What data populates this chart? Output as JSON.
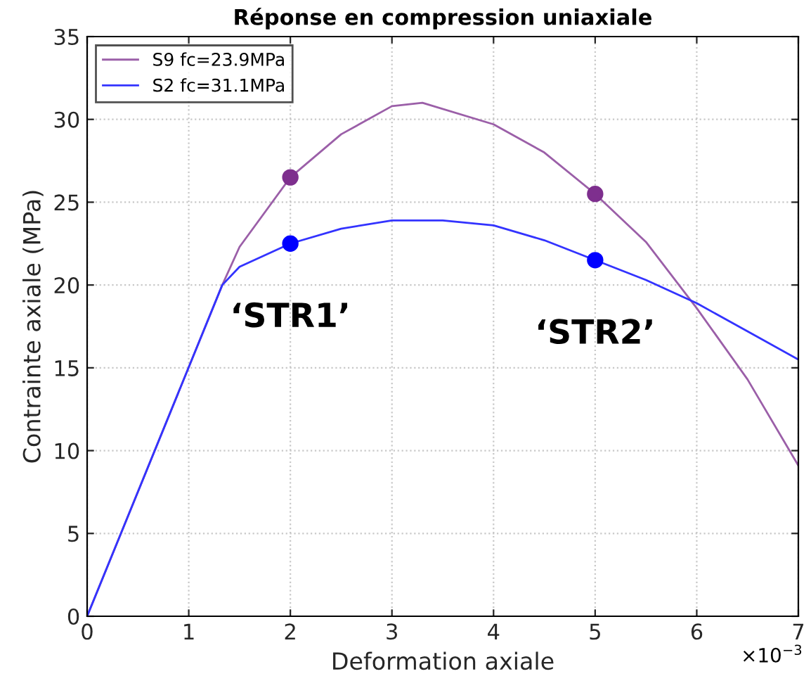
{
  "chart_data": {
    "type": "line",
    "title": "Réponse en compression uniaxiale",
    "xlabel": "Deformation axiale",
    "ylabel": "Contrainte axiale (MPa)",
    "series": [
      {
        "name": "S9 fc=23.9MPa",
        "color": "#9b5fa8",
        "x": [
          0,
          1.33,
          1.5,
          2,
          2.5,
          3,
          3.3,
          4,
          4.5,
          5,
          5.5,
          6,
          6.5,
          7
        ],
        "values": [
          0,
          20,
          22.3,
          26.5,
          29.1,
          30.8,
          31.0,
          29.7,
          28.0,
          25.5,
          22.6,
          18.6,
          14.3,
          9.1
        ]
      },
      {
        "name": "S2 fc=31.1MPa",
        "color": "#3333ff",
        "x": [
          0,
          1.33,
          1.5,
          2,
          2.5,
          3,
          3.5,
          4,
          4.5,
          5,
          5.5,
          6,
          6.5,
          7
        ],
        "values": [
          0,
          20,
          21.1,
          22.5,
          23.4,
          23.9,
          23.9,
          23.6,
          22.7,
          21.5,
          20.3,
          18.9,
          17.2,
          15.5
        ]
      },
      {
        "type": "scatter",
        "color": "#7e2f8e",
        "x": [
          2,
          5
        ],
        "values": [
          26.5,
          25.5
        ],
        "marker": "circle"
      },
      {
        "type": "scatter",
        "color": "#0000ff",
        "x": [
          2,
          5
        ],
        "values": [
          22.5,
          21.5
        ],
        "marker": "circle"
      }
    ],
    "xlim": [
      0,
      7
    ],
    "ylim": [
      0,
      35
    ],
    "xticks": [
      0,
      1,
      2,
      3,
      4,
      5,
      6,
      7
    ],
    "yticks": [
      0,
      5,
      10,
      15,
      20,
      25,
      30,
      35
    ],
    "grid": true,
    "legend": "top left",
    "annotations": [
      {
        "text": "‘STR1’",
        "x": 2,
        "y": 22.5
      },
      {
        "text": "‘STR2’",
        "x": 5,
        "y": 21.5
      },
      "×10$^{−3}$"
    ]
  }
}
